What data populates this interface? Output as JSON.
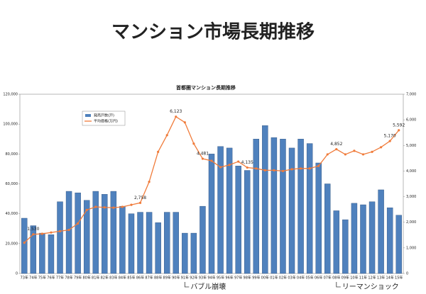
{
  "header": {
    "title": "マンション市場長期推移"
  },
  "chart_data": {
    "type": "bar-line",
    "title": "首都圏マンション長期推移",
    "categories": [
      "73年",
      "74年",
      "75年",
      "76年",
      "77年",
      "78年",
      "79年",
      "80年",
      "81年",
      "82年",
      "83年",
      "84年",
      "85年",
      "86年",
      "87年",
      "88年",
      "89年",
      "90年",
      "91年",
      "92年",
      "93年",
      "94年",
      "95年",
      "96年",
      "97年",
      "98年",
      "99年",
      "00年",
      "01年",
      "02年",
      "03年",
      "04年",
      "05年",
      "06年",
      "07年",
      "08年",
      "09年",
      "10年",
      "11年",
      "12年",
      "13年",
      "14年",
      "15年"
    ],
    "series": [
      {
        "name": "発売戸数(戸)",
        "type": "bar",
        "color": "#4f81bd",
        "values": [
          37000,
          32000,
          27000,
          26000,
          48000,
          55000,
          54000,
          49000,
          55000,
          53000,
          55000,
          45000,
          40000,
          41000,
          41000,
          34000,
          41000,
          41000,
          27000,
          27000,
          45000,
          80000,
          85000,
          84000,
          72000,
          69000,
          90000,
          99000,
          91000,
          90000,
          84000,
          90000,
          87000,
          74000,
          60000,
          42000,
          36000,
          47000,
          46000,
          48000,
          56000,
          44000,
          39000
        ]
      },
      {
        "name": "平均価格(万円)",
        "type": "line",
        "axis": "y2",
        "color": "#f07b3a",
        "values": [
          1200,
          1530,
          1550,
          1600,
          1650,
          1700,
          1950,
          2480,
          2600,
          2580,
          2570,
          2600,
          2680,
          2758,
          3580,
          4750,
          5400,
          6123,
          5900,
          5070,
          4481,
          4400,
          4150,
          4240,
          4370,
          4135,
          4100,
          4030,
          4030,
          4000,
          4070,
          4100,
          4100,
          4200,
          4650,
          4852,
          4650,
          4790,
          4650,
          4750,
          4930,
          5170,
          5592
        ],
        "value_labels": [
          null,
          "1,530",
          null,
          null,
          null,
          null,
          null,
          null,
          null,
          null,
          null,
          null,
          null,
          "2,758",
          null,
          null,
          null,
          "6,123",
          null,
          null,
          "4,481",
          null,
          null,
          null,
          null,
          "4,135",
          null,
          null,
          null,
          null,
          null,
          null,
          null,
          null,
          null,
          "4,852",
          null,
          null,
          null,
          null,
          null,
          "5,170",
          "5,592"
        ]
      }
    ],
    "ylim": [
      0,
      120000
    ],
    "yticks": [
      0,
      {
        "value": 20000,
        "label": "20,000"
      },
      {
        "value": 40000,
        "label": "40,000"
      },
      {
        "value": 60000,
        "label": "60,000"
      },
      {
        "value": 80000,
        "label": "80,000"
      },
      {
        "value": 100000,
        "label": "100,000"
      },
      {
        "value": 120000,
        "label": "120,000"
      }
    ],
    "y2lim": [
      0,
      7000
    ],
    "y2ticks": [
      0,
      {
        "value": 1000,
        "label": "1,000"
      },
      {
        "value": 2000,
        "label": "2,000"
      },
      {
        "value": 3000,
        "label": "3,000"
      },
      {
        "value": 4000,
        "label": "4,000"
      },
      {
        "value": 5000,
        "label": "5,000"
      },
      {
        "value": 6000,
        "label": "6,000"
      },
      {
        "value": 7000,
        "label": "7,000"
      }
    ],
    "annotations": [
      {
        "text": "バブル崩壊",
        "category": "91年"
      },
      {
        "text": "リーマンショック",
        "category": "08年"
      }
    ]
  }
}
